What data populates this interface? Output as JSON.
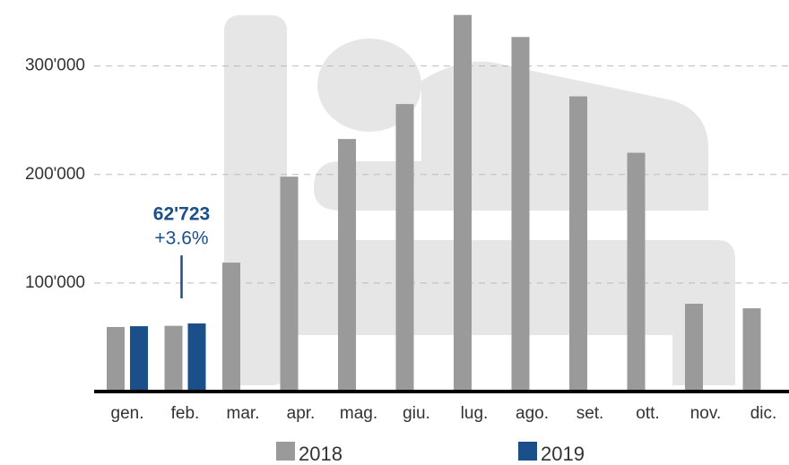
{
  "chart_data": {
    "type": "bar",
    "categories": [
      "gen.",
      "feb.",
      "mar.",
      "apr.",
      "mag.",
      "giu.",
      "lug.",
      "ago.",
      "set.",
      "ott.",
      "nov.",
      "dic."
    ],
    "series": [
      {
        "name": "2018",
        "color": "#9a9a9a",
        "values": [
          59500,
          60545,
          118800,
          198000,
          232700,
          264900,
          347000,
          326700,
          272000,
          220000,
          80900,
          76700
        ]
      },
      {
        "name": "2019",
        "color": "#1b4f8a",
        "values": [
          60200,
          62723,
          null,
          null,
          null,
          null,
          null,
          null,
          null,
          null,
          null,
          null
        ],
        "value_labels": [
          null,
          "62'723",
          null,
          null,
          null,
          null,
          null,
          null,
          null,
          null,
          null,
          null
        ]
      }
    ],
    "annotation": "+3.6%",
    "ylim": [
      0,
      355000
    ],
    "yticks": [
      {
        "value": 100000,
        "label": "100'000"
      },
      {
        "value": 200000,
        "label": "200'000"
      },
      {
        "value": 300000,
        "label": "300'000"
      }
    ],
    "grid": true
  }
}
